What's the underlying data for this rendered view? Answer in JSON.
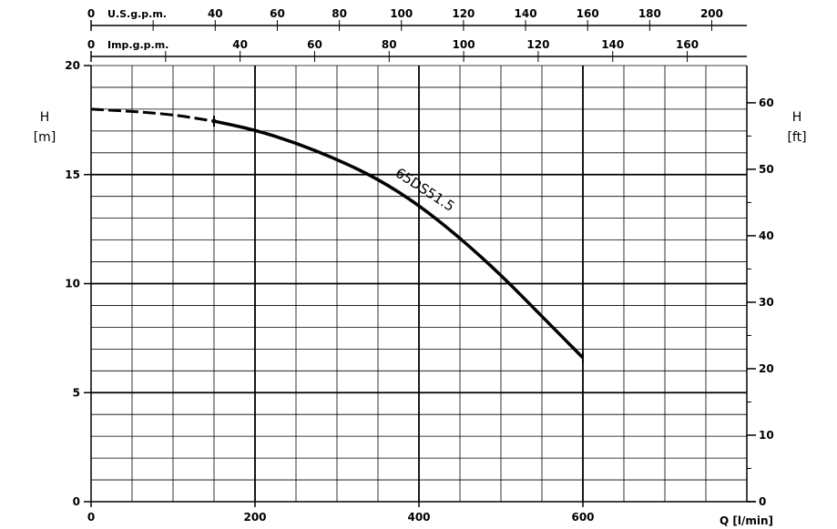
{
  "chart_data": {
    "type": "line",
    "title": "",
    "xlabel": "Q [l/min]",
    "xlim": [
      0,
      800
    ],
    "ylim": [
      0,
      20
    ],
    "x_ticks": [
      "0",
      "200",
      "400",
      "600"
    ],
    "y_left": {
      "label": "H",
      "unit": "[m]",
      "ticks": [
        "0",
        "5",
        "10",
        "15",
        "20"
      ]
    },
    "y_right": {
      "label": "H",
      "unit": "[ft]",
      "range": [
        0,
        65.6
      ],
      "ticks": [
        "0",
        "10",
        "20",
        "30",
        "40",
        "50",
        "60"
      ]
    },
    "top_axis_usgpm": {
      "label": "U.S.g.p.m.",
      "zero": "0",
      "ticks": [
        "40",
        "60",
        "80",
        "100",
        "120",
        "140",
        "160",
        "180",
        "200"
      ],
      "range": [
        0,
        211.3
      ]
    },
    "top_axis_impgpm": {
      "label": "Imp.g.p.m.",
      "zero": "0",
      "ticks": [
        "40",
        "60",
        "80",
        "100",
        "120",
        "140",
        "160"
      ],
      "range": [
        0,
        176
      ]
    },
    "grid": true,
    "series": [
      {
        "name": "65DS51.5",
        "dashed_until_x": 150,
        "x": [
          0,
          50,
          100,
          150,
          200,
          250,
          300,
          350,
          400,
          450,
          500,
          550,
          600
        ],
        "y": [
          18.0,
          17.9,
          17.75,
          17.45,
          17.05,
          16.45,
          15.7,
          14.8,
          13.6,
          12.1,
          10.4,
          8.5,
          6.6
        ]
      }
    ],
    "marker_point": {
      "x": 150,
      "y": 17.45
    }
  }
}
